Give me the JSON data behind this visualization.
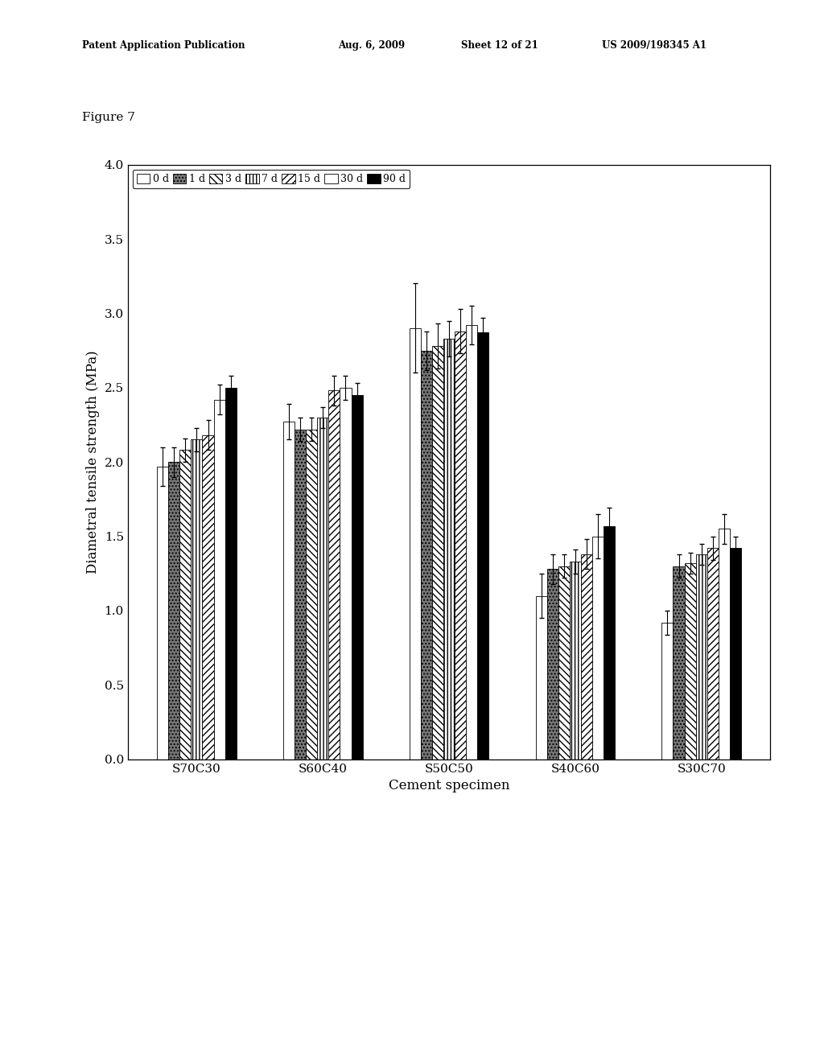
{
  "title": "Figure 7",
  "xlabel": "Cement specimen",
  "ylabel": "Diametral tensile strength (MPa)",
  "categories": [
    "S70C30",
    "S60C40",
    "S50C50",
    "S40C60",
    "S30C70"
  ],
  "series_labels": [
    "0 d",
    "1 d",
    "3 d",
    "7 d",
    "15 d",
    "30 d",
    "90 d"
  ],
  "bar_values": [
    [
      1.97,
      2.27,
      2.9,
      1.1,
      0.92
    ],
    [
      2.0,
      2.22,
      2.75,
      1.28,
      1.3
    ],
    [
      2.08,
      2.22,
      2.78,
      1.3,
      1.32
    ],
    [
      2.15,
      2.3,
      2.83,
      1.33,
      1.38
    ],
    [
      2.18,
      2.48,
      2.88,
      1.38,
      1.42
    ],
    [
      2.42,
      2.5,
      2.92,
      1.5,
      1.55
    ],
    [
      2.5,
      2.45,
      2.87,
      1.57,
      1.42
    ]
  ],
  "error_values": [
    [
      0.13,
      0.12,
      0.3,
      0.15,
      0.08
    ],
    [
      0.1,
      0.08,
      0.13,
      0.1,
      0.08
    ],
    [
      0.08,
      0.08,
      0.15,
      0.08,
      0.07
    ],
    [
      0.08,
      0.07,
      0.12,
      0.08,
      0.07
    ],
    [
      0.1,
      0.1,
      0.15,
      0.1,
      0.08
    ],
    [
      0.1,
      0.08,
      0.13,
      0.15,
      0.1
    ],
    [
      0.08,
      0.08,
      0.1,
      0.12,
      0.08
    ]
  ],
  "ylim": [
    0.0,
    4.0
  ],
  "yticks": [
    0.0,
    0.5,
    1.0,
    1.5,
    2.0,
    2.5,
    3.0,
    3.5,
    4.0
  ],
  "header_line1": "Patent Application Publication",
  "header_line2": "Aug. 6, 2009",
  "header_line3": "Sheet 12 of 21",
  "header_line4": "US 2009/198345 A1",
  "figure_label": "Figure 7",
  "background_color": "#ffffff"
}
